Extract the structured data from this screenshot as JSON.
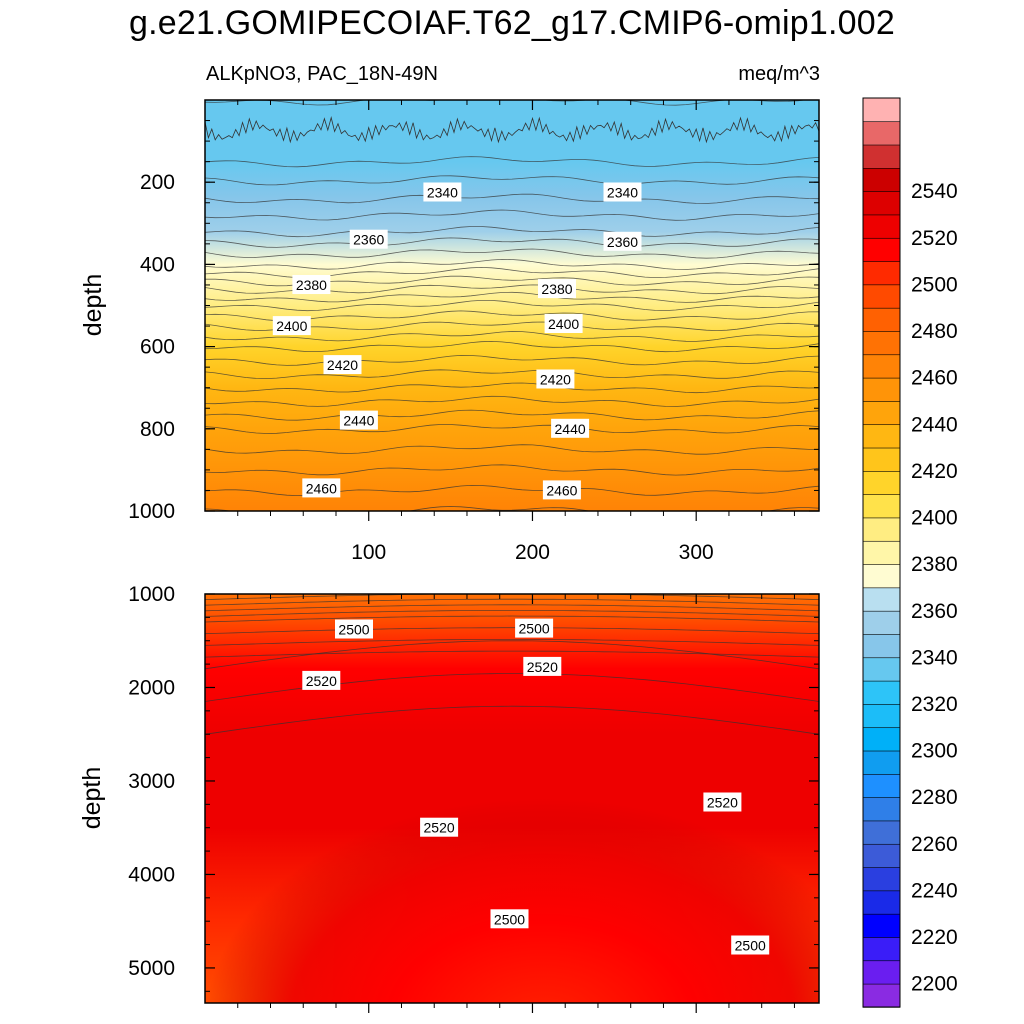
{
  "header": {
    "title": "g.e21.GOMIPECOIAF.T62_g17.CMIP6-omip1.002",
    "subtitle": "ALKpNO3, PAC_18N-49N",
    "units": "meq/m^3"
  },
  "chart_data": [
    {
      "type": "heatmap",
      "panel": "upper",
      "variable": "ALKpNO3",
      "region": "PAC_18N-49N",
      "xlabel": "",
      "ylabel": "depth",
      "xlim": [
        0,
        375
      ],
      "ylim": [
        1000,
        0
      ],
      "xticks": [
        "100",
        "200",
        "300"
      ],
      "yticks": [
        "200",
        "400",
        "600",
        "800",
        "1000"
      ],
      "levels": [
        {
          "depth": 0,
          "value": 2330
        },
        {
          "depth": 150,
          "value": 2335
        },
        {
          "depth": 240,
          "value": 2345
        },
        {
          "depth": 320,
          "value": 2355
        },
        {
          "depth": 400,
          "value": 2370
        },
        {
          "depth": 500,
          "value": 2395
        },
        {
          "depth": 600,
          "value": 2415
        },
        {
          "depth": 700,
          "value": 2430
        },
        {
          "depth": 800,
          "value": 2445
        },
        {
          "depth": 900,
          "value": 2455
        },
        {
          "depth": 1000,
          "value": 2465
        }
      ],
      "contour_labels": [
        {
          "text": "2340",
          "x": 145,
          "depth": 225
        },
        {
          "text": "2340",
          "x": 255,
          "depth": 225
        },
        {
          "text": "2360",
          "x": 100,
          "depth": 340
        },
        {
          "text": "2360",
          "x": 255,
          "depth": 345
        },
        {
          "text": "2380",
          "x": 65,
          "depth": 450
        },
        {
          "text": "2380",
          "x": 215,
          "depth": 460
        },
        {
          "text": "2400",
          "x": 53,
          "depth": 550
        },
        {
          "text": "2400",
          "x": 219,
          "depth": 545
        },
        {
          "text": "2420",
          "x": 84,
          "depth": 645
        },
        {
          "text": "2420",
          "x": 214,
          "depth": 680
        },
        {
          "text": "2440",
          "x": 94,
          "depth": 780
        },
        {
          "text": "2440",
          "x": 223,
          "depth": 800
        },
        {
          "text": "2460",
          "x": 71,
          "depth": 945
        },
        {
          "text": "2460",
          "x": 218,
          "depth": 950
        }
      ]
    },
    {
      "type": "heatmap",
      "panel": "lower",
      "variable": "ALKpNO3",
      "region": "PAC_18N-49N",
      "xlabel": "",
      "ylabel": "depth",
      "xlim": [
        0,
        375
      ],
      "ylim": [
        5375,
        1000
      ],
      "yticks": [
        "1000",
        "2000",
        "3000",
        "4000",
        "5000"
      ],
      "levels": [
        {
          "depth": 1000,
          "value": 2470
        },
        {
          "depth": 1300,
          "value": 2495
        },
        {
          "depth": 1800,
          "value": 2515
        },
        {
          "depth": 2500,
          "value": 2525
        },
        {
          "depth": 3500,
          "value": 2520
        },
        {
          "depth": 4500,
          "value": 2505
        },
        {
          "depth": 5300,
          "value": 2495
        }
      ],
      "contour_labels": [
        {
          "text": "2500",
          "x": 91,
          "depth": 1380
        },
        {
          "text": "2500",
          "x": 201,
          "depth": 1370
        },
        {
          "text": "2520",
          "x": 71,
          "depth": 1930
        },
        {
          "text": "2520",
          "x": 206,
          "depth": 1780
        },
        {
          "text": "2520",
          "x": 143,
          "depth": 3500
        },
        {
          "text": "2520",
          "x": 316,
          "depth": 3230
        },
        {
          "text": "2500",
          "x": 186,
          "depth": 4480
        },
        {
          "text": "2500",
          "x": 333,
          "depth": 4760
        }
      ]
    }
  ],
  "colorbar": {
    "labels": [
      "2540",
      "2520",
      "2500",
      "2480",
      "2460",
      "2440",
      "2420",
      "2400",
      "2380",
      "2360",
      "2340",
      "2320",
      "2300",
      "2280",
      "2260",
      "2240",
      "2220",
      "2200"
    ],
    "colors": [
      "#8a2be2",
      "#6a1ef0",
      "#3a1df8",
      "#0000ff",
      "#1a2ae8",
      "#2a3fe0",
      "#3c5bd8",
      "#3f6fd8",
      "#2f7fe8",
      "#1e90ff",
      "#109df0",
      "#00b0f8",
      "#1cbdf8",
      "#2dc4f8",
      "#66c8ef",
      "#87c6ea",
      "#9ecfea",
      "#b9dff0",
      "#fffcd2",
      "#fff6a8",
      "#ffed82",
      "#ffe24a",
      "#ffd42a",
      "#ffc51b",
      "#ffb712",
      "#ffa40b",
      "#ff9408",
      "#ff8306",
      "#ff7204",
      "#ff6102",
      "#ff4a00",
      "#ff2a00",
      "#ff0000",
      "#ee0000",
      "#dd0000",
      "#cc0000",
      "#d03030",
      "#e86868",
      "#ffb2b2"
    ]
  }
}
